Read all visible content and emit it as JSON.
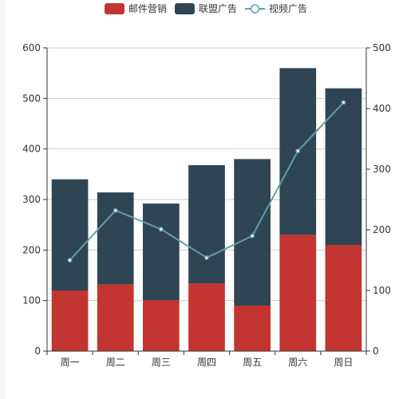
{
  "chart_data": {
    "type": "bar",
    "categories": [
      "周一",
      "周二",
      "周三",
      "周四",
      "周五",
      "周六",
      "周日"
    ],
    "series": [
      {
        "name": "邮件营销",
        "type": "bar",
        "stack": "total",
        "axis": "left",
        "color": "#c23531",
        "values": [
          120,
          132,
          101,
          134,
          90,
          230,
          210
        ]
      },
      {
        "name": "联盟广告",
        "type": "bar",
        "stack": "total",
        "axis": "left",
        "color": "#2f4554",
        "values": [
          220,
          182,
          191,
          234,
          290,
          330,
          310
        ]
      },
      {
        "name": "视频广告",
        "type": "line",
        "axis": "right",
        "color": "#61a0a8",
        "values": [
          150,
          232,
          201,
          154,
          190,
          330,
          410
        ]
      }
    ],
    "y_left": {
      "min": 0,
      "max": 600,
      "ticks": [
        0,
        100,
        200,
        300,
        400,
        500,
        600
      ]
    },
    "y_right": {
      "min": 0,
      "max": 500,
      "ticks": [
        0,
        100,
        200,
        300,
        400,
        500
      ]
    },
    "grid": true,
    "legend_position": "top-center",
    "title": "",
    "xlabel": "",
    "ylabel": ""
  }
}
